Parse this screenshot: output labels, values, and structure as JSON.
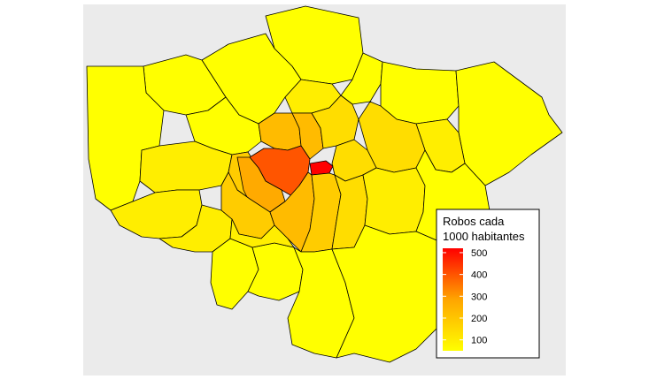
{
  "legend": {
    "title_line1": "Robos cada",
    "title_line2": "1000 habitantes",
    "ticks": [
      "100",
      "200",
      "300",
      "400",
      "500"
    ],
    "tick_values": [
      100,
      200,
      300,
      400,
      500
    ],
    "range": [
      50,
      520
    ]
  },
  "colors": {
    "panel_background": "#ebebeb",
    "low": "#ffff00",
    "mid": "#ffa500",
    "high": "#ff0000",
    "border": "#000000"
  }
}
